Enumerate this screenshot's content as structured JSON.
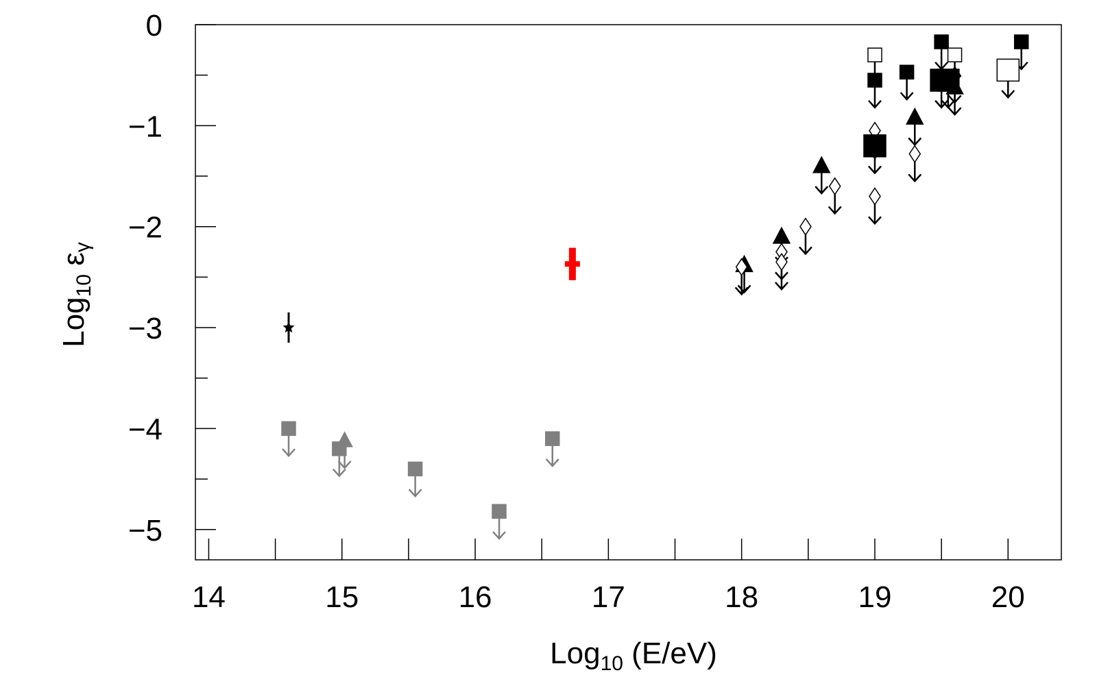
{
  "chart_data": {
    "type": "scatter",
    "xlabel": {
      "base": "Log",
      "sub": "10",
      "rest": " (E/eV)"
    },
    "ylabel": {
      "base": "Log",
      "sub": "10",
      "rest": " ε",
      "sub2": "γ"
    },
    "xlim": [
      13.9,
      20.4
    ],
    "ylim": [
      -5.3,
      0
    ],
    "xticks": [
      14,
      15,
      16,
      17,
      18,
      19,
      20
    ],
    "xminor_ticks": [
      14.5,
      15.5,
      16.5,
      17.5,
      18.5,
      19.5
    ],
    "yticks": [
      {
        "value": 0,
        "label": "0"
      },
      {
        "value": -1,
        "label": "−1"
      },
      {
        "value": -2,
        "label": "−2"
      },
      {
        "value": -3,
        "label": "−3"
      },
      {
        "value": -4,
        "label": "−4"
      },
      {
        "value": -5,
        "label": "−5"
      }
    ],
    "yminor_ticks": [
      -0.5,
      -1.5,
      -2.5,
      -3.5,
      -4.5
    ],
    "series": [
      {
        "marker": "square",
        "size": 20,
        "fill": true,
        "color": "#808080",
        "upper_limit": true,
        "x": [
          14.6,
          14.98,
          15.55,
          16.18,
          16.58
        ],
        "values": [
          -4.0,
          -4.2,
          -4.4,
          -4.82,
          -4.1
        ]
      },
      {
        "marker": "triangle",
        "size": 22,
        "fill": true,
        "color": "#808080",
        "upper_limit": true,
        "x": [
          15.02
        ],
        "values": [
          -4.12
        ]
      },
      {
        "marker": "star",
        "size": 14,
        "fill": true,
        "color": "#000000",
        "upper_limit": false,
        "x": [
          14.6
        ],
        "values": [
          -3.0
        ],
        "errors": [
          0.15
        ]
      },
      {
        "marker": "cross",
        "size": 22,
        "fill": true,
        "color": "#ff0000",
        "upper_limit": false,
        "x": [
          16.73
        ],
        "values": [
          -2.37
        ],
        "errors": [
          0.16
        ]
      },
      {
        "marker": "triangle",
        "size": 24,
        "fill": true,
        "color": "#000000",
        "upper_limit": true,
        "x": [
          18.02,
          18.3,
          18.6,
          19.3,
          19.6
        ],
        "values": [
          -2.38,
          -2.1,
          -1.4,
          -0.92,
          -0.62
        ]
      },
      {
        "marker": "diamond",
        "size": 20,
        "fill": false,
        "color": "#000000",
        "upper_limit": true,
        "x": [
          18.0,
          18.3,
          18.3,
          18.48,
          18.7,
          19.0,
          19.0,
          19.3,
          19.6
        ],
        "values": [
          -2.4,
          -2.25,
          -2.35,
          -2.0,
          -1.6,
          -1.05,
          -1.7,
          -1.28,
          -0.5
        ]
      },
      {
        "marker": "square",
        "size": 20,
        "fill": true,
        "color": "#000000",
        "upper_limit": true,
        "x": [
          19.0,
          19.24,
          19.5,
          20.1
        ],
        "values": [
          -0.55,
          -0.47,
          -0.17,
          -0.17
        ]
      },
      {
        "marker": "square",
        "size": 32,
        "fill": true,
        "color": "#000000",
        "upper_limit": true,
        "x": [
          19.0,
          19.5,
          19.55
        ],
        "values": [
          -1.2,
          -0.55,
          -0.55
        ]
      },
      {
        "marker": "square",
        "size": 20,
        "fill": false,
        "color": "#000000",
        "upper_limit": true,
        "x": [
          19.0,
          19.6
        ],
        "values": [
          -0.3,
          -0.3
        ]
      },
      {
        "marker": "square",
        "size": 32,
        "fill": false,
        "color": "#000000",
        "upper_limit": true,
        "x": [
          20.0
        ],
        "values": [
          -0.45
        ]
      }
    ]
  }
}
